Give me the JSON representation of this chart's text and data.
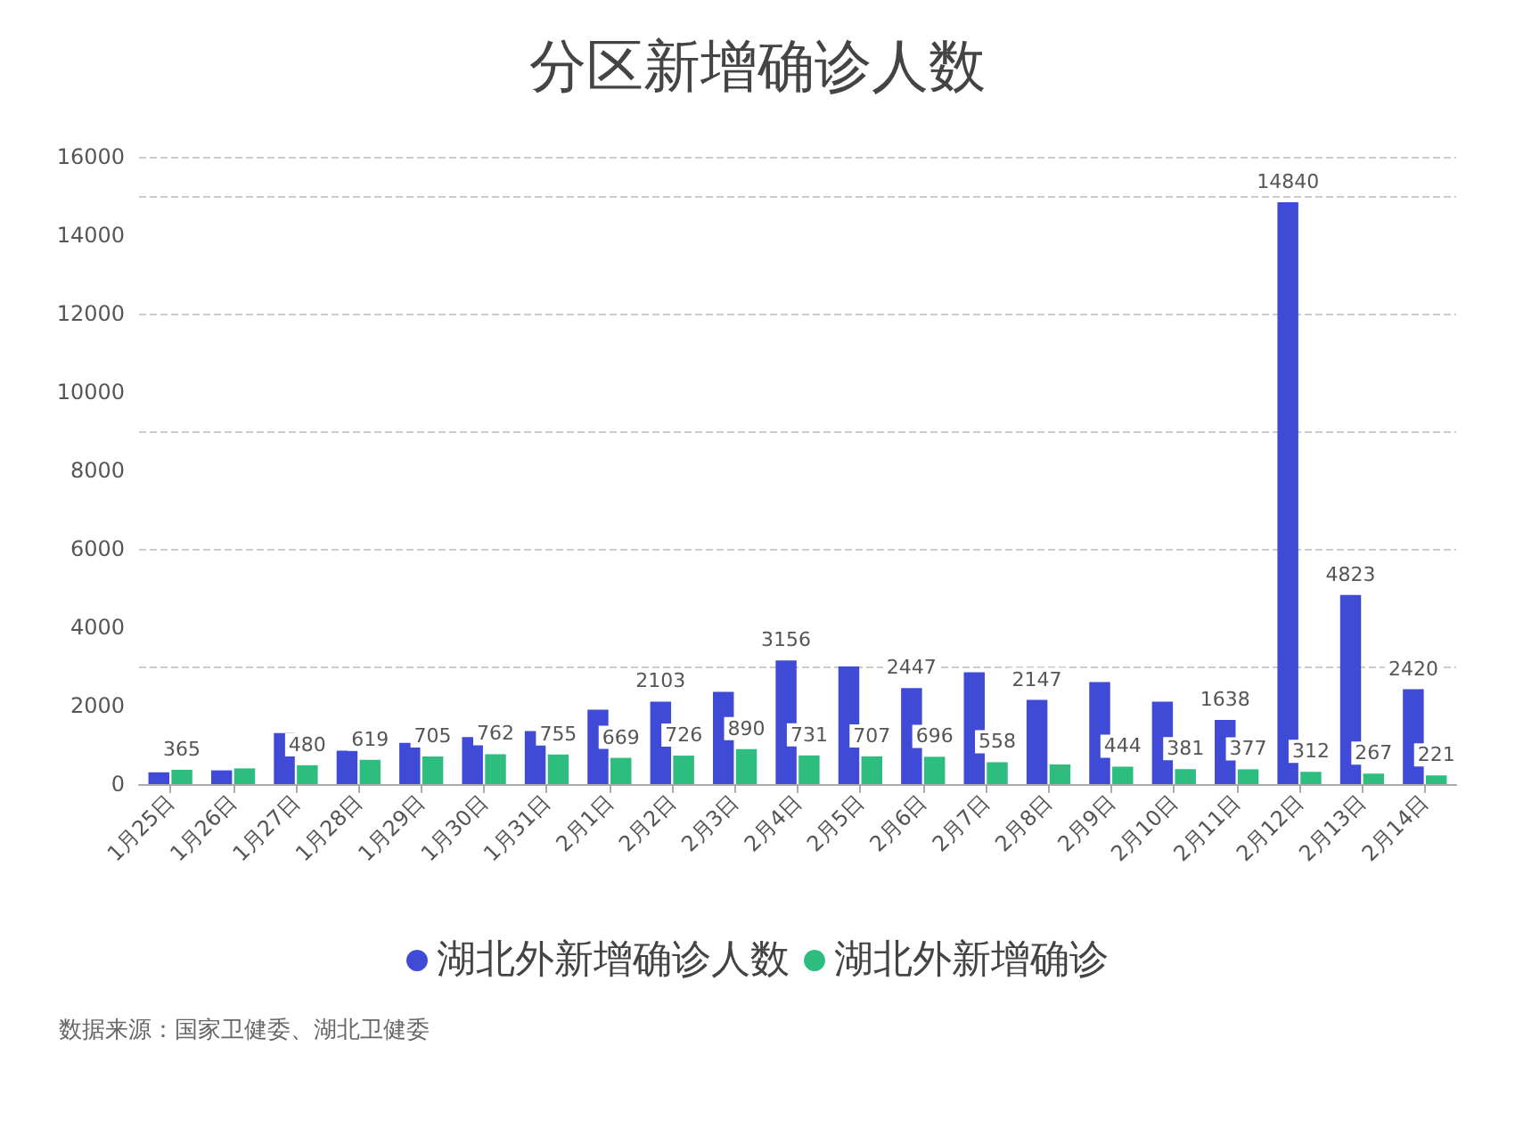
{
  "chart_data": {
    "type": "bar",
    "title": "分区新增确诊人数",
    "categories": [
      "1月25日",
      "1月26日",
      "1月27日",
      "1月28日",
      "1月29日",
      "1月30日",
      "1月31日",
      "2月1日",
      "2月2日",
      "2月3日",
      "2月4日",
      "2月5日",
      "2月6日",
      "2月7日",
      "2月8日",
      "2月9日",
      "2月10日",
      "2月11日",
      "2月12日",
      "2月13日",
      "2月14日"
    ],
    "series": [
      {
        "name": "湖北外新增确诊人数",
        "color": "#3f4bd6",
        "values": [
          300,
          350,
          1300,
          850,
          1050,
          1200,
          1350,
          1900,
          2103,
          2350,
          3156,
          3000,
          2447,
          2850,
          2147,
          2600,
          2100,
          1638,
          14840,
          4823,
          2420
        ],
        "value_labels": [
          null,
          null,
          null,
          null,
          null,
          null,
          null,
          null,
          "2103",
          null,
          "3156",
          null,
          "2447",
          null,
          "2147",
          null,
          null,
          "1638",
          "14840",
          "4823",
          "2420"
        ]
      },
      {
        "name": "湖北外新增确诊",
        "color": "#2dbd7f",
        "values": [
          365,
          400,
          480,
          619,
          705,
          762,
          755,
          669,
          726,
          890,
          731,
          707,
          696,
          558,
          500,
          444,
          381,
          377,
          312,
          267,
          221
        ],
        "value_labels": [
          "365",
          null,
          "480",
          "619",
          "705",
          "762",
          "755",
          "669",
          "726",
          "890",
          "731",
          "707",
          "696",
          "558",
          null,
          "444",
          "381",
          "377",
          "312",
          "267",
          "221"
        ]
      }
    ],
    "ylim": [
      0,
      16000
    ],
    "yticks": [
      0,
      2000,
      4000,
      6000,
      8000,
      10000,
      12000,
      14000,
      16000
    ],
    "grid": "y",
    "legend": "bottom",
    "annotations": [
      "数据来源：国家卫健委、湖北卫健委"
    ]
  }
}
